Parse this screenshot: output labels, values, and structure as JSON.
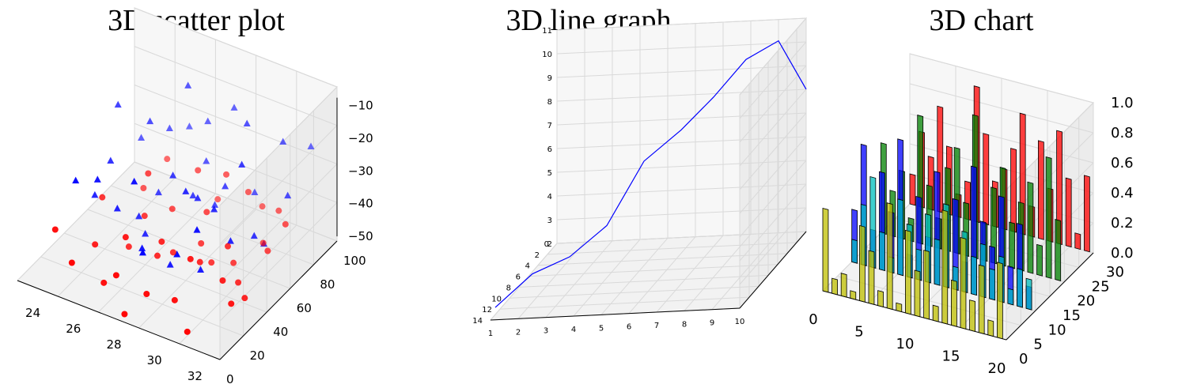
{
  "chart_data": [
    {
      "type": "scatter",
      "title": "3D scatter plot",
      "xlim": [
        23,
        33
      ],
      "ylim": [
        0,
        100
      ],
      "zlim": [
        -50,
        -5
      ],
      "x_ticks": [
        "24",
        "26",
        "28",
        "30",
        "32"
      ],
      "y_ticks": [
        "0",
        "20",
        "40",
        "60",
        "80",
        "100"
      ],
      "z_ticks": [
        "−50",
        "−40",
        "−30",
        "−20",
        "−10"
      ],
      "grid": true,
      "colors": {
        "series_triangles": "#0000ff",
        "series_circles": "#ff0000"
      },
      "series": [
        {
          "marker": "triangle",
          "points": [
            [
              24.5,
              60,
              -16
            ],
            [
              25.0,
              45,
              -26
            ],
            [
              25.5,
              70,
              -22
            ],
            [
              26.2,
              30,
              -32
            ],
            [
              26.8,
              80,
              -12
            ],
            [
              27.5,
              55,
              -28
            ],
            [
              28.0,
              20,
              -36
            ],
            [
              28.5,
              90,
              -18
            ],
            [
              29.0,
              40,
              -24
            ],
            [
              29.5,
              65,
              -30
            ],
            [
              30.0,
              75,
              -14
            ],
            [
              30.6,
              25,
              -38
            ],
            [
              31.2,
              85,
              -20
            ],
            [
              31.8,
              50,
              -34
            ],
            [
              24.8,
              35,
              -33
            ],
            [
              25.8,
              20,
              -21
            ],
            [
              26.5,
              60,
              -37
            ],
            [
              27.2,
              90,
              -25
            ],
            [
              27.9,
              15,
              -15
            ],
            [
              28.7,
              70,
              -39
            ],
            [
              29.3,
              45,
              -27
            ],
            [
              30.3,
              10,
              -29
            ],
            [
              30.9,
              55,
              -17
            ],
            [
              31.5,
              35,
              -31
            ],
            [
              32.0,
              95,
              -23
            ],
            [
              24.2,
              85,
              -35
            ],
            [
              25.3,
              10,
              -19
            ],
            [
              26.0,
              95,
              -31
            ],
            [
              27.0,
              40,
              -41
            ],
            [
              28.2,
              60,
              -34
            ],
            [
              29.8,
              85,
              -38
            ],
            [
              31.0,
              15,
              -22
            ],
            [
              32.3,
              70,
              -28
            ],
            [
              27.7,
              80,
              -32
            ],
            [
              29.1,
              25,
              -40
            ],
            [
              30.4,
              40,
              -26
            ],
            [
              26.4,
              45,
              -39
            ],
            [
              25.6,
              85,
              -29
            ],
            [
              28.9,
              5,
              -30
            ],
            [
              31.7,
              60,
              -40
            ]
          ]
        },
        {
          "marker": "circle",
          "points": [
            [
              24.3,
              50,
              -40
            ],
            [
              25.1,
              30,
              -45
            ],
            [
              25.7,
              65,
              -35
            ],
            [
              26.4,
              15,
              -48
            ],
            [
              27.0,
              85,
              -38
            ],
            [
              27.6,
              40,
              -46
            ],
            [
              28.3,
              70,
              -42
            ],
            [
              28.8,
              10,
              -44
            ],
            [
              29.4,
              55,
              -49
            ],
            [
              30.1,
              25,
              -36
            ],
            [
              30.7,
              90,
              -43
            ],
            [
              31.3,
              45,
              -47
            ],
            [
              31.9,
              75,
              -39
            ],
            [
              24.6,
              80,
              -47
            ],
            [
              25.4,
              5,
              -41
            ],
            [
              26.1,
              55,
              -43
            ],
            [
              26.9,
              25,
              -37
            ],
            [
              27.4,
              95,
              -49
            ],
            [
              28.1,
              35,
              -39
            ],
            [
              28.6,
              60,
              -47
            ],
            [
              29.2,
              90,
              -41
            ],
            [
              29.9,
              15,
              -45
            ],
            [
              30.5,
              50,
              -40
            ],
            [
              31.1,
              5,
              -48
            ],
            [
              31.6,
              65,
              -44
            ],
            [
              32.2,
              35,
              -46
            ],
            [
              24.0,
              15,
              -38
            ],
            [
              25.9,
              45,
              -49
            ],
            [
              27.3,
              10,
              -42
            ],
            [
              28.4,
              85,
              -36
            ],
            [
              29.7,
              40,
              -43
            ],
            [
              30.8,
              75,
              -47
            ],
            [
              32.4,
              20,
              -42
            ],
            [
              26.6,
              70,
              -45
            ],
            [
              27.8,
              50,
              -48
            ],
            [
              29.6,
              95,
              -46
            ],
            [
              31.4,
              30,
              -41
            ],
            [
              24.9,
              95,
              -43
            ],
            [
              28.0,
              5,
              -50
            ],
            [
              30.2,
              60,
              -49
            ]
          ]
        }
      ]
    },
    {
      "type": "line",
      "title": "3D line graph",
      "xlim": [
        1,
        10
      ],
      "ylim": [
        0,
        14
      ],
      "zlim": [
        2,
        11
      ],
      "x_ticks": [
        "1",
        "2",
        "3",
        "4",
        "5",
        "6",
        "7",
        "8",
        "9",
        "10"
      ],
      "y_ticks": [
        "0",
        "2",
        "4",
        "6",
        "8",
        "10",
        "12",
        "14"
      ],
      "z_ticks": [
        "2",
        "3",
        "4",
        "5",
        "6",
        "7",
        "8",
        "9",
        "10",
        "11"
      ],
      "grid": true,
      "colors": {
        "line": "#0000ff"
      },
      "points": [
        [
          1,
          1,
          2.3
        ],
        [
          2,
          3,
          3.2
        ],
        [
          3,
          5,
          3.4
        ],
        [
          4,
          7,
          4.2
        ],
        [
          5,
          9,
          6.4
        ],
        [
          6,
          11,
          7.2
        ],
        [
          7,
          12,
          8.3
        ],
        [
          8,
          13,
          9.6
        ],
        [
          9,
          14,
          10.1
        ],
        [
          10,
          14,
          8.0
        ]
      ]
    },
    {
      "type": "bar",
      "title": "3D chart",
      "xlim": [
        0,
        20
      ],
      "ylim": [
        0,
        30
      ],
      "zlim": [
        0,
        1.0
      ],
      "x_ticks": [
        "0",
        "5",
        "10",
        "15",
        "20"
      ],
      "y_ticks": [
        "0",
        "5",
        "10",
        "15",
        "20",
        "25",
        "30"
      ],
      "z_ticks": [
        "0.0",
        "0.2",
        "0.4",
        "0.6",
        "0.8",
        "1.0"
      ],
      "grid": true,
      "series": [
        {
          "color": "#ff0000",
          "y": 30,
          "values": [
            0.2,
            0.5,
            0.35,
            0.7,
            0.45,
            0.15,
            0.25,
            0.9,
            0.6,
            0.3,
            0.4,
            0.55,
            0.8,
            0.2,
            0.65,
            0.35,
            0.75,
            0.45,
            0.1,
            0.5
          ]
        },
        {
          "color": "#008000",
          "y": 20,
          "values": [
            0.6,
            0.3,
            0.45,
            0.15,
            0.85,
            0.4,
            0.2,
            0.55,
            0.7,
            0.35,
            0.95,
            0.25,
            0.5,
            0.65,
            0.3,
            0.45,
            0.6,
            0.2,
            0.8,
            0.4
          ]
        },
        {
          "color": "#0000ff",
          "y": 10,
          "values": [
            0.35,
            0.8,
            0.25,
            0.65,
            0.4,
            0.9,
            0.15,
            0.55,
            0.3,
            0.75,
            0.45,
            0.6,
            0.2,
            0.85,
            0.5,
            0.35,
            0.7,
            0.25,
            0.55,
            0.15
          ]
        },
        {
          "color": "#00bfbf",
          "y": 10,
          "values": [
            0.15,
            0.4,
            0.6,
            0.25,
            0.1,
            0.5,
            0.35,
            0.2,
            0.45,
            0.3,
            0.55,
            0.15,
            0.4,
            0.25,
            0.35,
            0.2,
            0.3,
            0.1,
            0.25,
            0.2
          ]
        },
        {
          "color": "#bfbf00",
          "y": 0,
          "values": [
            0.55,
            0.1,
            0.15,
            0.05,
            0.5,
            0.35,
            0.1,
            0.7,
            0.05,
            0.55,
            0.3,
            0.45,
            0.1,
            0.75,
            0.3,
            0.6,
            0.2,
            0.45,
            0.1,
            0.5
          ]
        }
      ]
    }
  ]
}
